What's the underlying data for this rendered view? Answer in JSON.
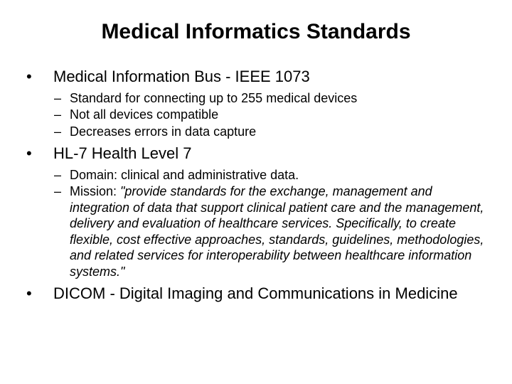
{
  "slide": {
    "title": "Medical Informatics Standards",
    "background_color": "#ffffff",
    "text_color": "#000000",
    "title_fontsize": 30,
    "level1_fontsize": 22,
    "level2_fontsize": 18,
    "font_family": "Arial",
    "bullets": [
      {
        "label": "Medical Information Bus - IEEE 1073",
        "sub": [
          {
            "text": "Standard for connecting up to 255 medical devices"
          },
          {
            "text": "Not all devices compatible"
          },
          {
            "text": "Decreases errors in data capture"
          }
        ]
      },
      {
        "label": " HL-7 Health Level 7",
        "sub": [
          {
            "text": "Domain: clinical and administrative data."
          },
          {
            "prefix": "Mission: ",
            "quoted_italic": "\"provide standards for the exchange, management and integration of data that support clinical patient care and the management, delivery and evaluation of healthcare services. Specifically, to create flexible, cost effective approaches, standards, guidelines, methodologies, and related services for interoperability between healthcare information systems.\""
          }
        ]
      },
      {
        "label": " DICOM - Digital Imaging and Communications in Medicine",
        "sub": []
      }
    ]
  }
}
